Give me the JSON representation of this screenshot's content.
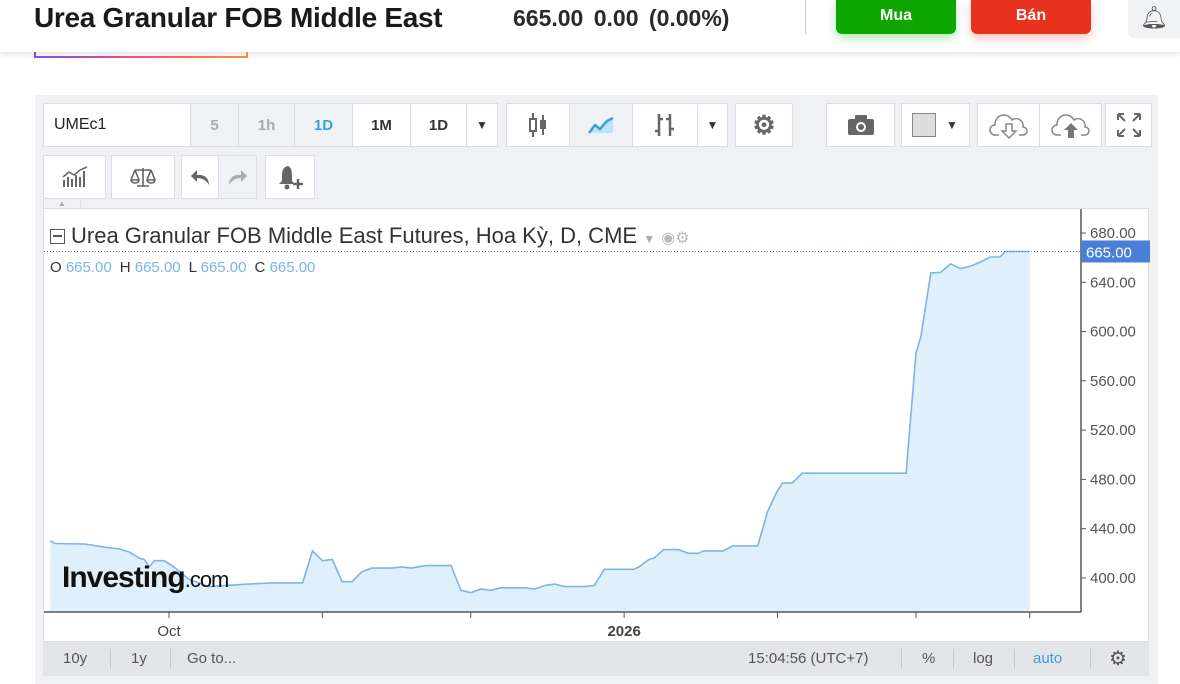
{
  "header": {
    "title": "Urea Granular FOB Middle East",
    "price": "665.00",
    "change": "0.00",
    "change_pct": "(0.00%)",
    "buy_label": "Mua",
    "sell_label": "Bán",
    "alert_icon": "bell-plus-icon"
  },
  "toolbar": {
    "symbol": "UMEc1",
    "intervals": [
      {
        "label": "5",
        "state": "disabled"
      },
      {
        "label": "1h",
        "state": "disabled"
      },
      {
        "label": "1D",
        "state": "active"
      },
      {
        "label": "1M",
        "state": "normal"
      },
      {
        "label": "1D",
        "state": "normal"
      }
    ],
    "icons": [
      "dropdown-icon",
      "candlestick-icon",
      "area-chart-icon",
      "bar-chart-icon",
      "dropdown-icon",
      "gear-icon",
      "camera-icon",
      "color-box-icon",
      "dropdown-icon",
      "cloud-download-icon",
      "cloud-upload-icon",
      "fullscreen-icon",
      "indicators-icon",
      "compare-scale-icon",
      "undo-icon",
      "redo-icon",
      "alert-add-icon"
    ]
  },
  "chart": {
    "legend": "Urea Granular FOB Middle East Futures, Hoa Kỳ, D, CME",
    "o_label": "O",
    "o": "665.00",
    "h_label": "H",
    "h": "665.00",
    "l_label": "L",
    "l": "665.00",
    "c_label": "C",
    "c": "665.00",
    "last_price_tag": "665.00",
    "watermark": "Investing",
    "watermark_suffix": ".com",
    "line_color": "#7db4e8",
    "fill_color": "#dff0fa",
    "tag_color": "#4a7fd8"
  },
  "chart_data": {
    "type": "area",
    "ylim": [
      370,
      690
    ],
    "yticks": [
      400,
      440,
      480,
      520,
      560,
      600,
      640,
      680
    ],
    "ytick_labels": [
      "400.00",
      "440.00",
      "480.00",
      "520.00",
      "560.00",
      "600.00",
      "640.00",
      "680.00"
    ],
    "xticks": [
      {
        "date": "2025-10-01",
        "label": "Oct"
      },
      {
        "date": "2025-11-01",
        "label": ""
      },
      {
        "date": "2025-12-01",
        "label": ""
      },
      {
        "date": "2026-01-01",
        "label": "2026"
      },
      {
        "date": "2026-02-01",
        "label": ""
      },
      {
        "date": "2026-03-01",
        "label": ""
      },
      {
        "date": "2026-03-24",
        "label": ""
      }
    ],
    "x": [
      "2025-09-07",
      "2025-09-08",
      "2025-09-14",
      "2025-09-18",
      "2025-09-21",
      "2025-09-23",
      "2025-09-25",
      "2025-09-26",
      "2025-09-27",
      "2025-09-28",
      "2025-09-30",
      "2025-10-02",
      "2025-10-05",
      "2025-10-09",
      "2025-10-17",
      "2025-10-22",
      "2025-10-28",
      "2025-10-30",
      "2025-11-01",
      "2025-11-03",
      "2025-11-05",
      "2025-11-07",
      "2025-11-09",
      "2025-11-11",
      "2025-11-15",
      "2025-11-17",
      "2025-11-19",
      "2025-11-22",
      "2025-11-27",
      "2025-11-29",
      "2025-12-01",
      "2025-12-03",
      "2025-12-05",
      "2025-12-07",
      "2025-12-12",
      "2025-12-14",
      "2025-12-16",
      "2025-12-18",
      "2025-12-20",
      "2025-12-24",
      "2025-12-26",
      "2025-12-28",
      "2026-01-03",
      "2026-01-04",
      "2026-01-06",
      "2026-01-07",
      "2026-01-09",
      "2026-01-12",
      "2026-01-14",
      "2026-01-16",
      "2026-01-17",
      "2026-01-21",
      "2026-01-23",
      "2026-01-27",
      "2026-01-28",
      "2026-01-30",
      "2026-02-01",
      "2026-02-02",
      "2026-02-04",
      "2026-02-06",
      "2026-02-27",
      "2026-03-01",
      "2026-03-02",
      "2026-03-04",
      "2026-03-06",
      "2026-03-08",
      "2026-03-10",
      "2026-03-12",
      "2026-03-14",
      "2026-03-16",
      "2026-03-18",
      "2026-03-19",
      "2026-03-24"
    ],
    "values": [
      430,
      428,
      427.5,
      425,
      423.5,
      421,
      416,
      415,
      409,
      414,
      414,
      409,
      399,
      393,
      395,
      396,
      396,
      422,
      414,
      415,
      397,
      397,
      405,
      408,
      408,
      409,
      408,
      410,
      410,
      390,
      388,
      391,
      390,
      392,
      392,
      391,
      394,
      395,
      393,
      393,
      394,
      407,
      407,
      409,
      415,
      416,
      423,
      423,
      420,
      420,
      422,
      422,
      426,
      426,
      426,
      454,
      471,
      477,
      477,
      485,
      485,
      582.5,
      596,
      647.5,
      648,
      655,
      651,
      653,
      656.5,
      660.5,
      660.5,
      665,
      665
    ]
  },
  "footer": {
    "range_10y": "10y",
    "range_1y": "1y",
    "goto": "Go to...",
    "time": "15:04:56 (UTC+7)",
    "percent": "%",
    "log": "log",
    "auto": "auto",
    "settings_icon": "gear-icon"
  }
}
